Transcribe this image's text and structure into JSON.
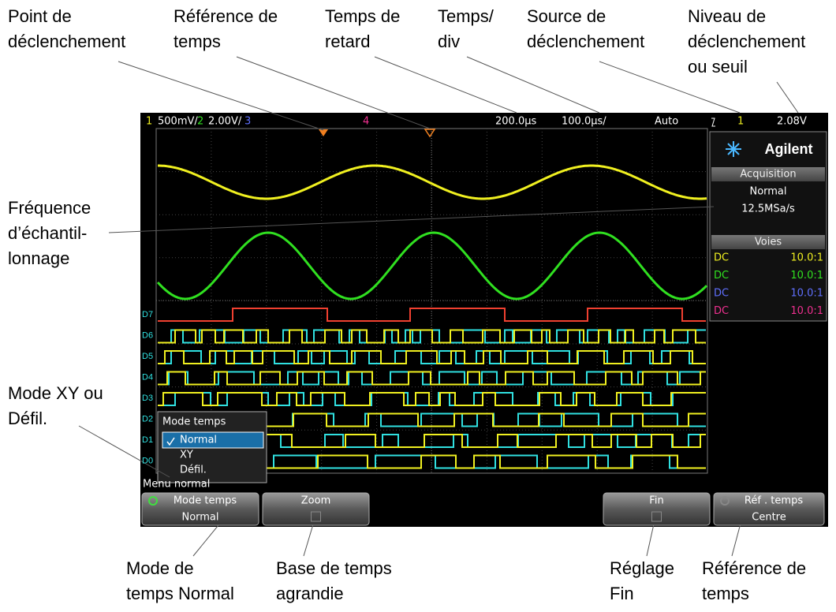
{
  "annotations": [
    {
      "lines": [
        "Point de",
        "déclenchement"
      ]
    },
    {
      "lines": [
        "Référence de",
        "temps"
      ]
    },
    {
      "lines": [
        "Temps de",
        "retard"
      ]
    },
    {
      "lines": [
        "Temps/",
        "div"
      ]
    },
    {
      "lines": [
        "Source de",
        "déclenchement"
      ]
    },
    {
      "lines": [
        "Niveau de",
        "déclenchement",
        "ou seuil"
      ]
    },
    {
      "lines": [
        "Fréquence",
        "d’échantil-",
        "lonnage"
      ]
    },
    {
      "lines": [
        "Mode XY ou",
        "Défil."
      ]
    },
    {
      "lines": [
        "Mode de",
        "temps Normal"
      ]
    },
    {
      "lines": [
        "Base de temps",
        "agrandie"
      ]
    },
    {
      "lines": [
        "Réglage",
        "Fin"
      ]
    },
    {
      "lines": [
        "Référence de",
        "temps"
      ]
    }
  ],
  "scope": {
    "top_bar": [
      "1",
      "500mV/",
      "2",
      "2.00V/",
      "3",
      "4",
      "200.0µs",
      "100.0µs/",
      "Auto",
      "1",
      "2.08V"
    ],
    "brand": "Agilent",
    "acquisition": {
      "title": "Acquisition",
      "mode": "Normal",
      "rate": "12.5MSa/s"
    },
    "channels": {
      "title": "Voies",
      "rows": [
        [
          "DC",
          "10.0:1"
        ],
        [
          "DC",
          "10.0:1"
        ],
        [
          "DC",
          "10.0:1"
        ],
        [
          "DC",
          "10.0:1"
        ]
      ]
    },
    "digital_labels": [
      "D7",
      "D6",
      "D5",
      "D4",
      "D3",
      "D2",
      "D1",
      "D0"
    ],
    "menu": {
      "title": "Mode temps",
      "items": [
        "Normal",
        "XY",
        "Défil."
      ]
    },
    "menu_caption": "Menu normal",
    "softkeys": [
      {
        "label": "Mode temps",
        "value": "Normal"
      },
      {
        "label": "Zoom"
      },
      {
        "label": "Fin"
      },
      {
        "label": "Réf . temps",
        "value": "Centre"
      }
    ]
  }
}
